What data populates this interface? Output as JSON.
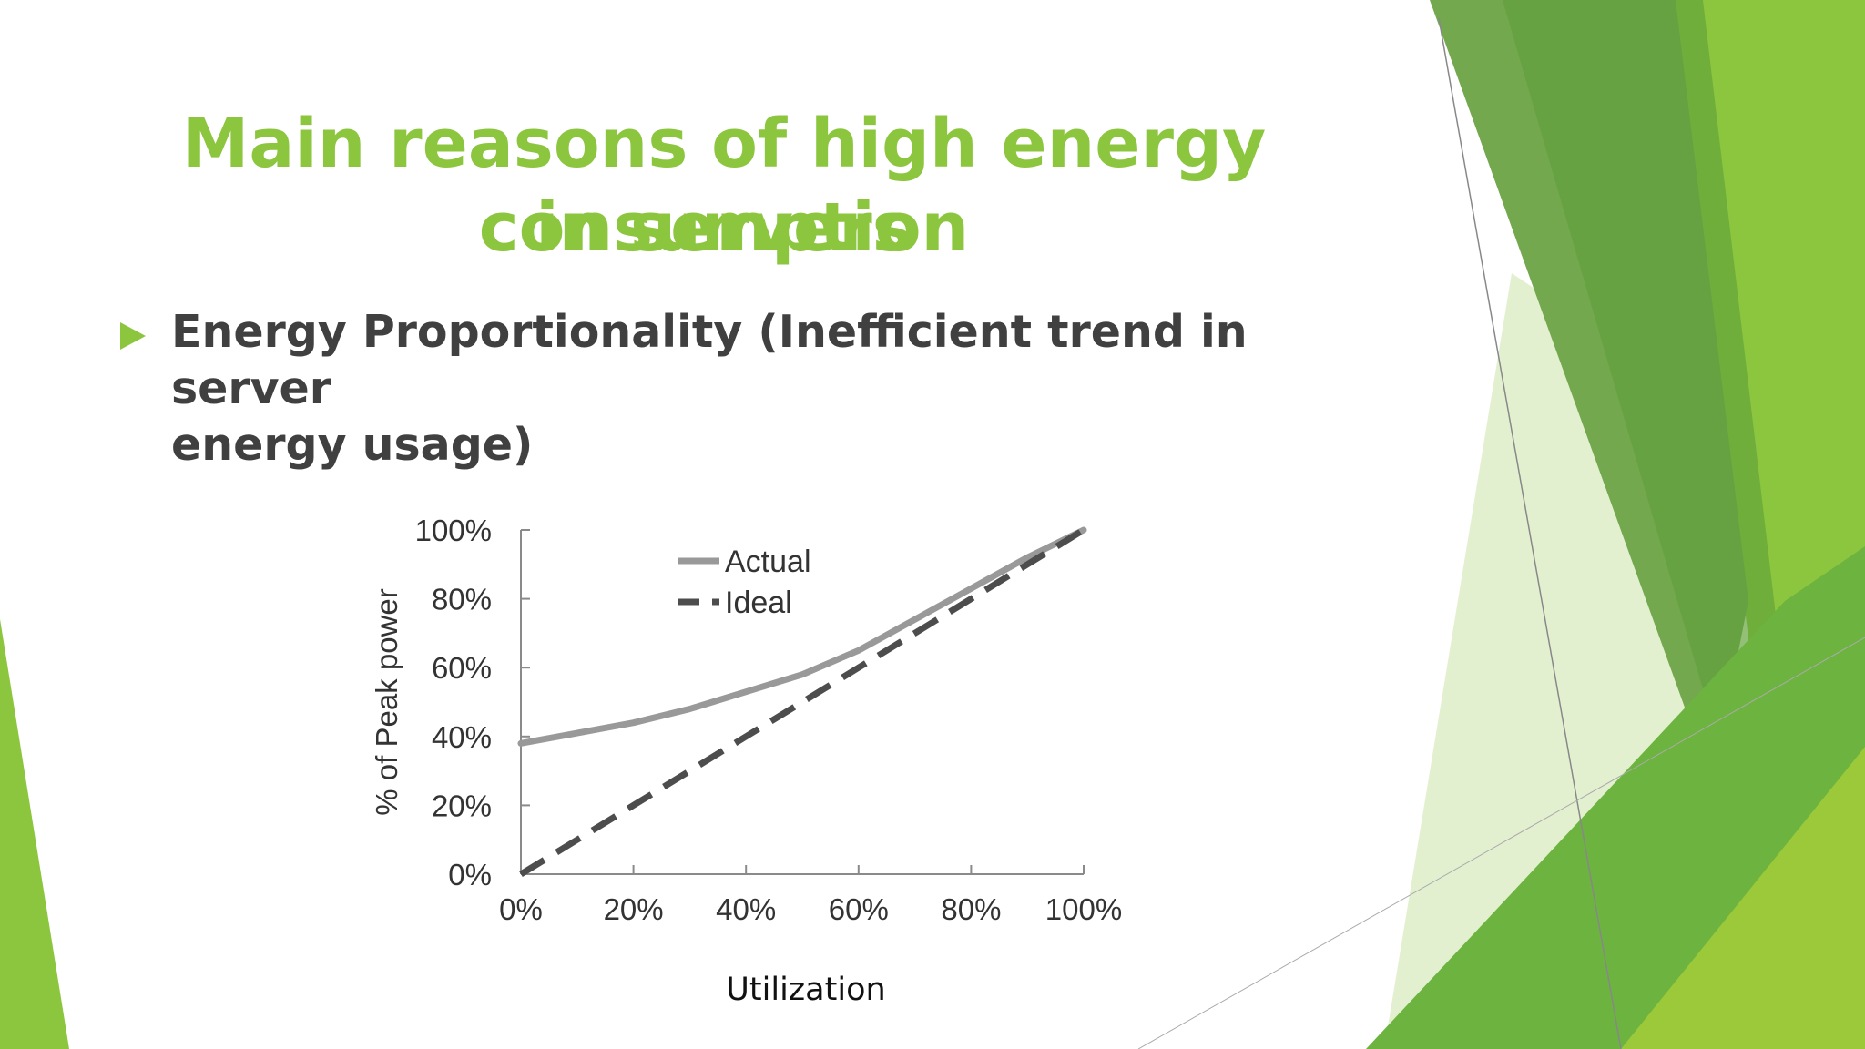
{
  "slide": {
    "title_line1": "Main reasons of high energy consumption",
    "title_line2": "in servers",
    "bullet_line1": "Energy Proportionality (Inefficient trend in server",
    "bullet_line2": "energy usage)"
  },
  "colors": {
    "title": "#8cc63f",
    "text": "#404040",
    "actual": "#999999",
    "ideal": "#4d4d4d",
    "accent_dark": "#73a84e",
    "accent_light": "#8cc63f"
  },
  "icons": {
    "bullet": "triangle-right-icon"
  },
  "chart_data": {
    "type": "line",
    "xlabel": "Utilization",
    "ylabel": "% of Peak power",
    "x": [
      0,
      10,
      20,
      30,
      40,
      50,
      60,
      70,
      80,
      90,
      100
    ],
    "xticks": [
      0,
      20,
      40,
      60,
      80,
      100
    ],
    "xtick_labels": [
      "0%",
      "20%",
      "40%",
      "60%",
      "80%",
      "100%"
    ],
    "yticks": [
      0,
      20,
      40,
      60,
      80,
      100
    ],
    "ytick_labels": [
      "0%",
      "20%",
      "40%",
      "60%",
      "80%",
      "100%"
    ],
    "xlim": [
      0,
      100
    ],
    "ylim": [
      0,
      100
    ],
    "grid": false,
    "legend": "top-center",
    "series": [
      {
        "name": "Actual",
        "style": "solid",
        "values": [
          38,
          41,
          44,
          48,
          53,
          58,
          65,
          74,
          83,
          92,
          100
        ]
      },
      {
        "name": "Ideal",
        "style": "dashed",
        "values": [
          0,
          10,
          20,
          30,
          40,
          50,
          60,
          70,
          80,
          90,
          100
        ]
      }
    ]
  }
}
